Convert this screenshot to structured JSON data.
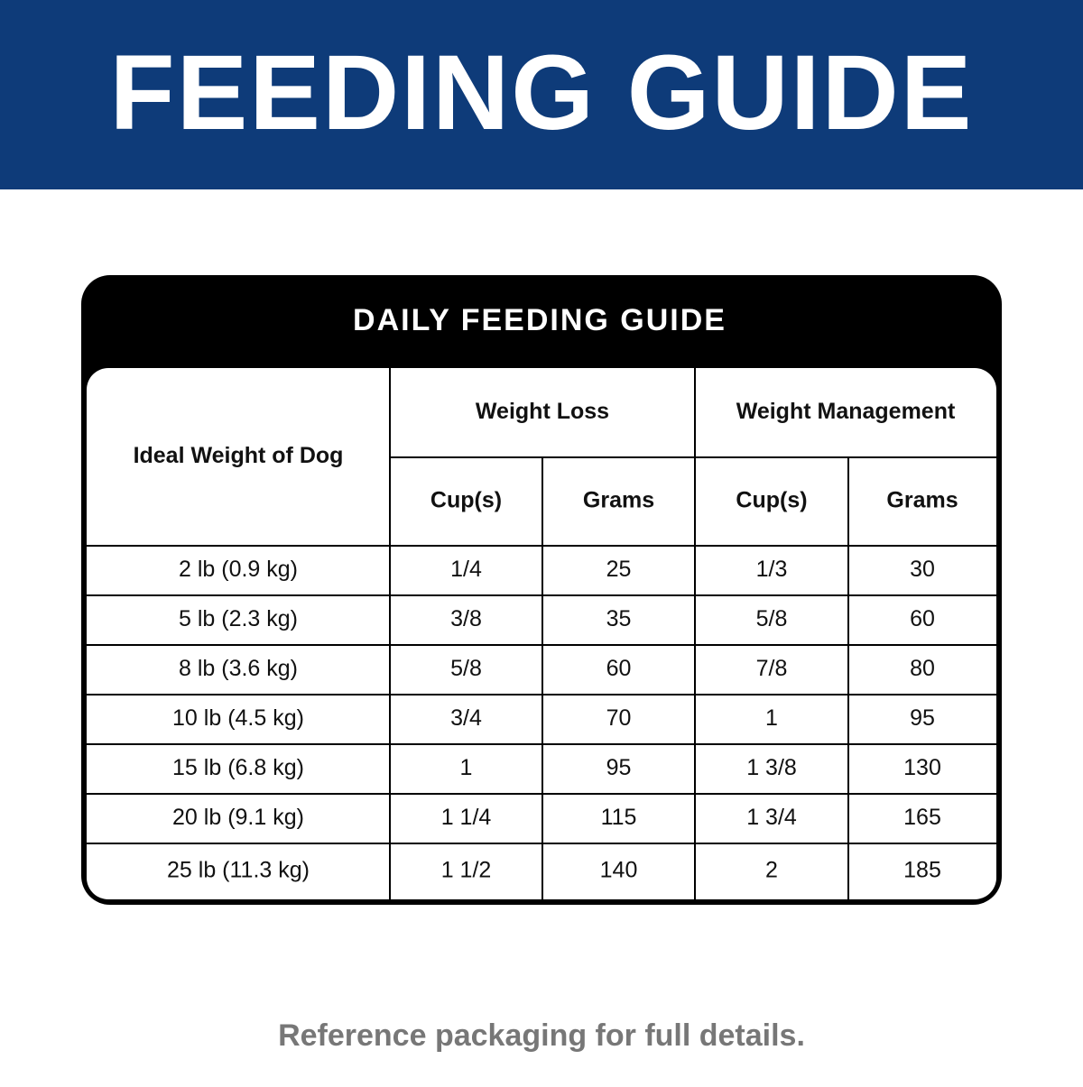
{
  "header": {
    "title": "FEEDING GUIDE"
  },
  "table": {
    "title": "DAILY FEEDING GUIDE",
    "first_column": "Ideal Weight of Dog",
    "groups": [
      {
        "name": "Weight Loss",
        "columns": [
          "Cup(s)",
          "Grams"
        ]
      },
      {
        "name": "Weight Management",
        "columns": [
          "Cup(s)",
          "Grams"
        ]
      }
    ],
    "rows": [
      [
        "2 lb (0.9 kg)",
        "1/4",
        25,
        "1/3",
        30
      ],
      [
        "5 lb (2.3 kg)",
        "3/8",
        35,
        "5/8",
        60
      ],
      [
        "8 lb (3.6 kg)",
        "5/8",
        60,
        "7/8",
        80
      ],
      [
        "10 lb (4.5 kg)",
        "3/4",
        70,
        "1",
        95
      ],
      [
        "15 lb (6.8 kg)",
        "1",
        95,
        "1 3/8",
        130
      ],
      [
        "20 lb (9.1 kg)",
        "1 1/4",
        115,
        "1 3/4",
        165
      ],
      [
        "25 lb (11.3 kg)",
        "1 1/2",
        140,
        "2",
        185
      ]
    ]
  },
  "footer": "Reference packaging for full details."
}
